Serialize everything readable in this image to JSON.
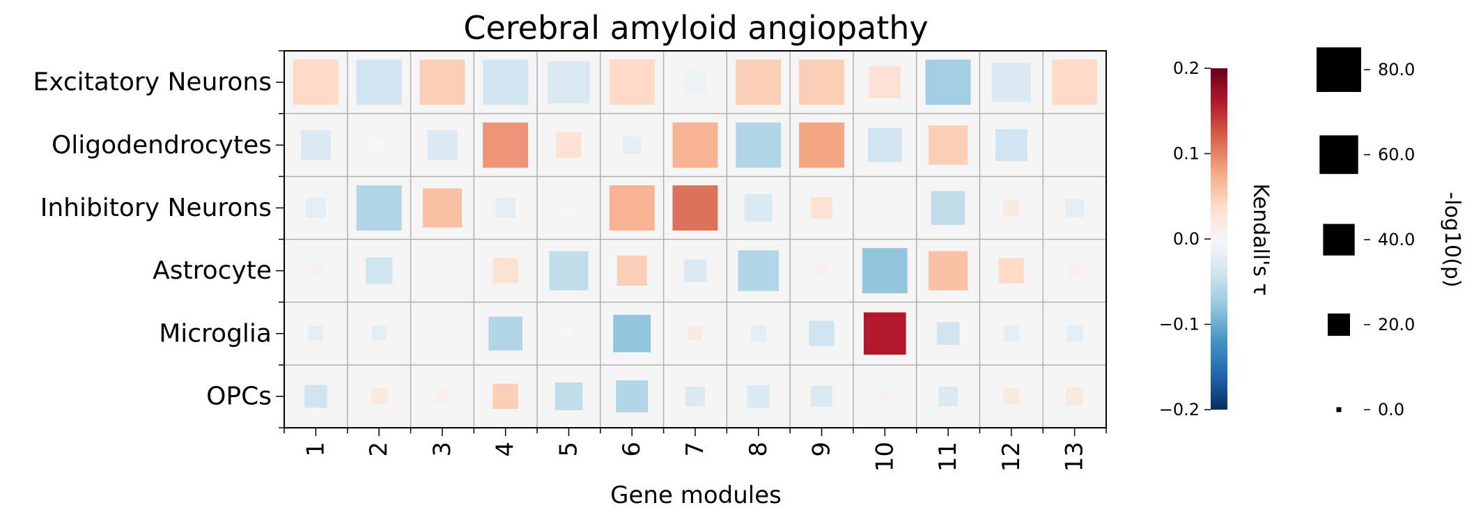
{
  "chart_data": {
    "type": "heatmap",
    "title": "Cerebral amyloid angiopathy",
    "xlabel": "Gene modules",
    "ylabel": "",
    "x_categories": [
      "1",
      "2",
      "3",
      "4",
      "5",
      "6",
      "7",
      "8",
      "9",
      "10",
      "11",
      "12",
      "13"
    ],
    "y_categories": [
      "Excitatory Neurons",
      "Oligodendrocytes",
      "Inhibitory Neurons",
      "Astrocyte",
      "Microglia",
      "OPCs"
    ],
    "tau": [
      [
        0.04,
        -0.04,
        0.05,
        -0.04,
        -0.03,
        0.04,
        -0.01,
        0.05,
        0.05,
        0.03,
        -0.07,
        -0.03,
        0.04
      ],
      [
        -0.03,
        0.0,
        -0.03,
        0.09,
        0.03,
        -0.02,
        0.07,
        -0.06,
        0.08,
        -0.04,
        0.05,
        -0.04,
        0.0
      ],
      [
        -0.02,
        -0.06,
        0.06,
        -0.02,
        0.0,
        0.07,
        0.11,
        -0.03,
        0.03,
        0.0,
        -0.05,
        0.02,
        -0.02
      ],
      [
        0.01,
        -0.04,
        0.0,
        0.03,
        -0.05,
        0.05,
        -0.03,
        -0.06,
        0.01,
        -0.08,
        0.06,
        0.04,
        0.01
      ],
      [
        -0.02,
        -0.02,
        0.0,
        -0.06,
        0.0,
        -0.08,
        0.02,
        -0.02,
        -0.04,
        0.16,
        -0.04,
        -0.02,
        -0.02
      ],
      [
        -0.04,
        0.02,
        0.01,
        0.05,
        -0.05,
        -0.06,
        -0.03,
        -0.03,
        -0.03,
        0.01,
        -0.03,
        0.02,
        0.02
      ]
    ],
    "neglog10p": [
      [
        80,
        80,
        80,
        80,
        70,
        80,
        20,
        80,
        80,
        40,
        80,
        60,
        80
      ],
      [
        35,
        3,
        35,
        80,
        25,
        12,
        80,
        80,
        80,
        45,
        60,
        40,
        0
      ],
      [
        16,
        80,
        60,
        16,
        2,
        80,
        80,
        30,
        18,
        0,
        45,
        10,
        13
      ],
      [
        5,
        28,
        0,
        25,
        60,
        35,
        20,
        65,
        4,
        80,
        60,
        25,
        6
      ],
      [
        8,
        8,
        0,
        45,
        2,
        55,
        7,
        10,
        25,
        70,
        20,
        10,
        10
      ],
      [
        20,
        10,
        6,
        25,
        30,
        40,
        15,
        20,
        18,
        2,
        15,
        10,
        12
      ]
    ],
    "colorbar": {
      "label": "Kendall's τ",
      "range": [
        -0.2,
        0.2
      ],
      "ticks": [
        "0.2",
        "0.1",
        "0.0",
        "−0.1",
        "−0.2"
      ],
      "colormap": "RdBu_r"
    },
    "size_legend": {
      "label": "-log10(p)",
      "values": [
        80,
        60,
        40,
        20,
        0
      ],
      "tick_labels": [
        "80.0",
        "60.0",
        "40.0",
        "20.0",
        "0.0"
      ],
      "marker_color": "#000000"
    },
    "grid": true,
    "background_color": "#f5f5f5",
    "grid_color": "#b0b0b0"
  }
}
